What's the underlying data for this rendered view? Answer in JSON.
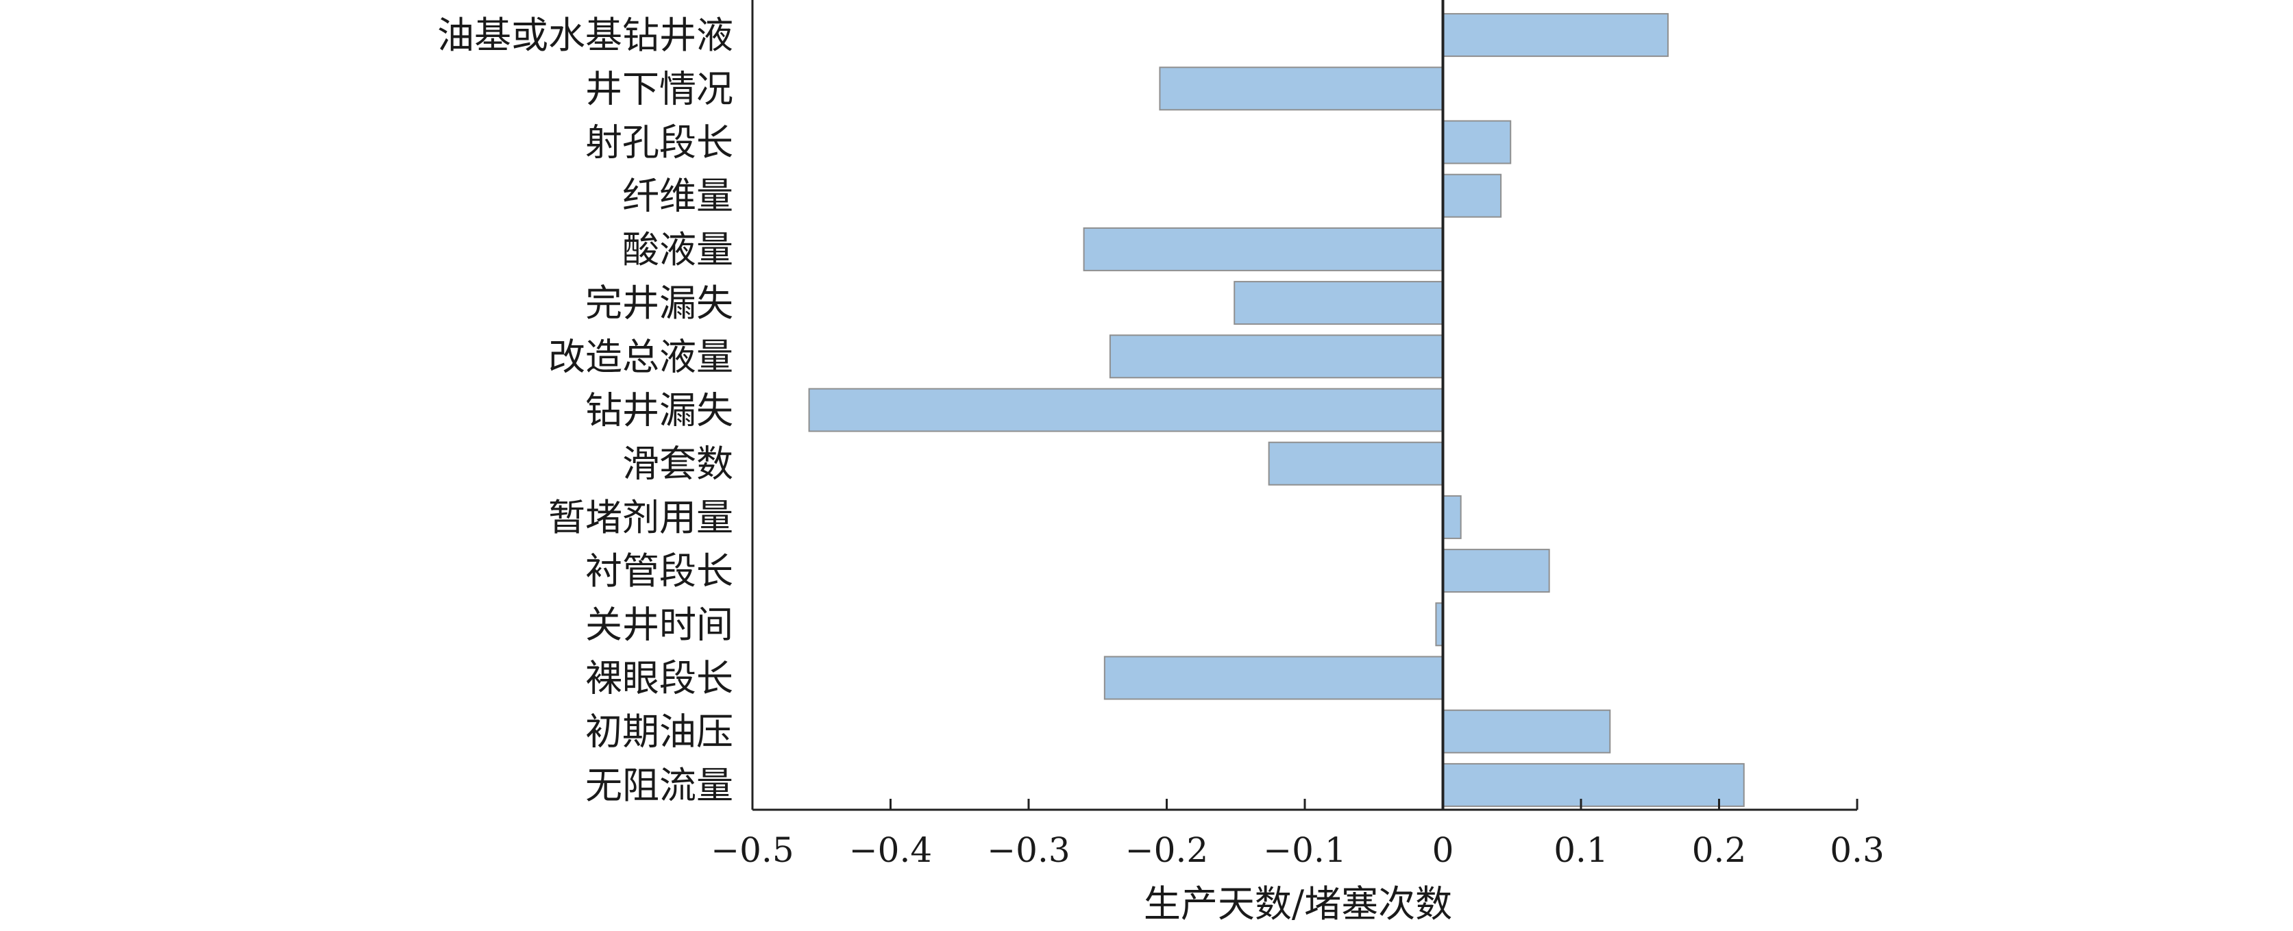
{
  "chart_data": {
    "type": "bar",
    "orientation": "horizontal",
    "categories": [
      "油基或水基钻井液",
      "井下情况",
      "射孔段长",
      "纤维量",
      "酸液量",
      "完井漏失",
      "改造总液量",
      "钻井漏失",
      "滑套数",
      "暂堵剂用量",
      "衬管段长",
      "关井时间",
      "裸眼段长",
      "初期油压",
      "无阻流量"
    ],
    "values": [
      0.163,
      -0.205,
      0.049,
      0.042,
      -0.26,
      -0.151,
      -0.241,
      -0.459,
      -0.126,
      0.013,
      0.077,
      -0.005,
      -0.245,
      0.121,
      0.218
    ],
    "xlabel": "生产天数/堵塞次数",
    "ylabel": "",
    "title": "",
    "xlim": [
      -0.5,
      0.3
    ],
    "xticks": [
      -0.5,
      -0.4,
      -0.3,
      -0.2,
      -0.1,
      0,
      0.1,
      0.2,
      0.3
    ],
    "xtick_labels": [
      "−0.5",
      "−0.4",
      "−0.3",
      "−0.2",
      "−0.1",
      "0",
      "0.1",
      "0.2",
      "0.3"
    ],
    "grid": false,
    "bar_color": "#a3c6e6",
    "bar_edge_color": "#8f8f8f",
    "axis_color": "#222222"
  }
}
